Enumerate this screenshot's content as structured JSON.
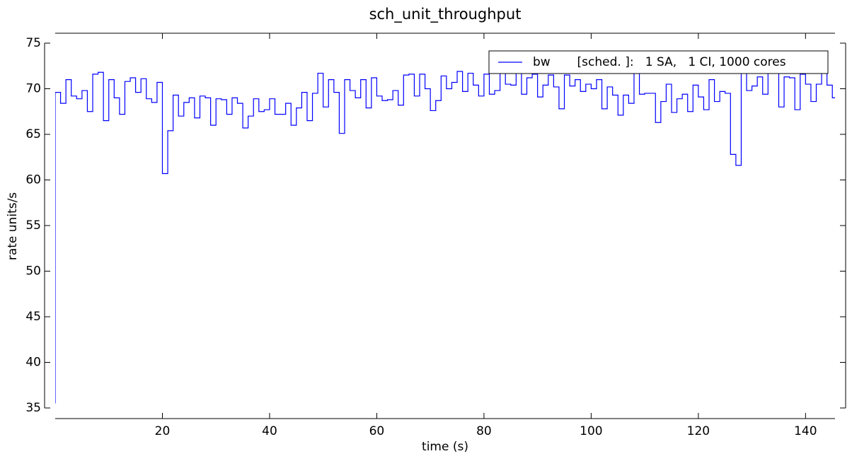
{
  "chart_data": {
    "type": "step",
    "title": "sch_unit_throughput",
    "x_label": "time (s)",
    "y_label": "rate units/s",
    "x": [
      0,
      1,
      2,
      3,
      4,
      5,
      6,
      7,
      8,
      9,
      10,
      11,
      12,
      13,
      14,
      15,
      16,
      17,
      18,
      19,
      20,
      21,
      22,
      23,
      24,
      25,
      26,
      27,
      28,
      29,
      30,
      31,
      32,
      33,
      34,
      35,
      36,
      37,
      38,
      39,
      40,
      41,
      42,
      43,
      44,
      45,
      46,
      47,
      48,
      49,
      50,
      51,
      52,
      53,
      54,
      55,
      56,
      57,
      58,
      59,
      60,
      61,
      62,
      63,
      64,
      65,
      66,
      67,
      68,
      69,
      70,
      71,
      72,
      73,
      74,
      75,
      76,
      77,
      78,
      79,
      80,
      81,
      82,
      83,
      84,
      85,
      86,
      87,
      88,
      89,
      90,
      91,
      92,
      93,
      94,
      95,
      96,
      97,
      98,
      99,
      100,
      101,
      102,
      103,
      104,
      105,
      106,
      107,
      108,
      109,
      110,
      111,
      112,
      113,
      114,
      115,
      116,
      117,
      118,
      119,
      120,
      121,
      122,
      123,
      124,
      125,
      126,
      127,
      128,
      129,
      130,
      131,
      132,
      133,
      134,
      135,
      136,
      137,
      138,
      139,
      140,
      141,
      142,
      143,
      144,
      145,
      146
    ],
    "series": [
      {
        "name": "bw       [sched. ]:   1 SA,   1 CI, 1000 cores",
        "color": "#0000ff",
        "values": [
          35.5,
          69.6,
          68.4,
          71.0,
          69.2,
          68.9,
          69.8,
          67.5,
          71.6,
          71.8,
          66.5,
          71.0,
          69.0,
          67.2,
          70.8,
          71.2,
          69.6,
          71.1,
          68.9,
          68.5,
          70.7,
          60.7,
          65.4,
          69.3,
          67.0,
          68.5,
          69.0,
          66.8,
          69.2,
          69.0,
          66.0,
          68.9,
          68.8,
          67.2,
          69.0,
          68.4,
          65.7,
          67.0,
          68.9,
          67.5,
          67.7,
          68.9,
          67.2,
          67.2,
          68.4,
          66.0,
          67.9,
          69.6,
          66.5,
          69.5,
          71.7,
          68.0,
          71.0,
          69.6,
          65.1,
          71.0,
          69.8,
          69.0,
          71.0,
          67.9,
          71.2,
          69.2,
          68.7,
          68.8,
          69.8,
          68.2,
          71.5,
          71.6,
          69.2,
          71.6,
          70.0,
          67.6,
          68.7,
          71.4,
          70.0,
          70.7,
          71.9,
          69.7,
          71.7,
          70.4,
          69.2,
          71.6,
          69.4,
          69.8,
          71.7,
          70.5,
          70.4,
          71.8,
          69.4,
          71.2,
          71.6,
          69.1,
          70.4,
          71.5,
          70.2,
          67.8,
          71.5,
          70.3,
          71.0,
          69.7,
          70.5,
          70.0,
          71.0,
          67.8,
          70.2,
          69.3,
          67.1,
          69.3,
          68.4,
          71.7,
          69.4,
          69.5,
          69.5,
          66.3,
          68.6,
          70.5,
          67.4,
          68.9,
          69.4,
          67.5,
          70.4,
          69.1,
          67.7,
          71.0,
          68.6,
          69.7,
          69.5,
          62.8,
          61.6,
          72.0,
          69.8,
          70.3,
          71.3,
          69.4,
          71.8,
          71.8,
          68.0,
          71.3,
          71.2,
          67.7,
          71.6,
          70.5,
          68.6,
          70.5,
          71.8,
          70.4,
          69.0
        ]
      }
    ],
    "xlim": [
      0,
      145.5
    ],
    "xticks": [
      20,
      40,
      60,
      80,
      100,
      120,
      140
    ],
    "ylim": [
      35,
      75
    ],
    "yticks": [
      35,
      40,
      45,
      50,
      55,
      60,
      65,
      70,
      75
    ],
    "grid": false,
    "legend": "upper right"
  }
}
